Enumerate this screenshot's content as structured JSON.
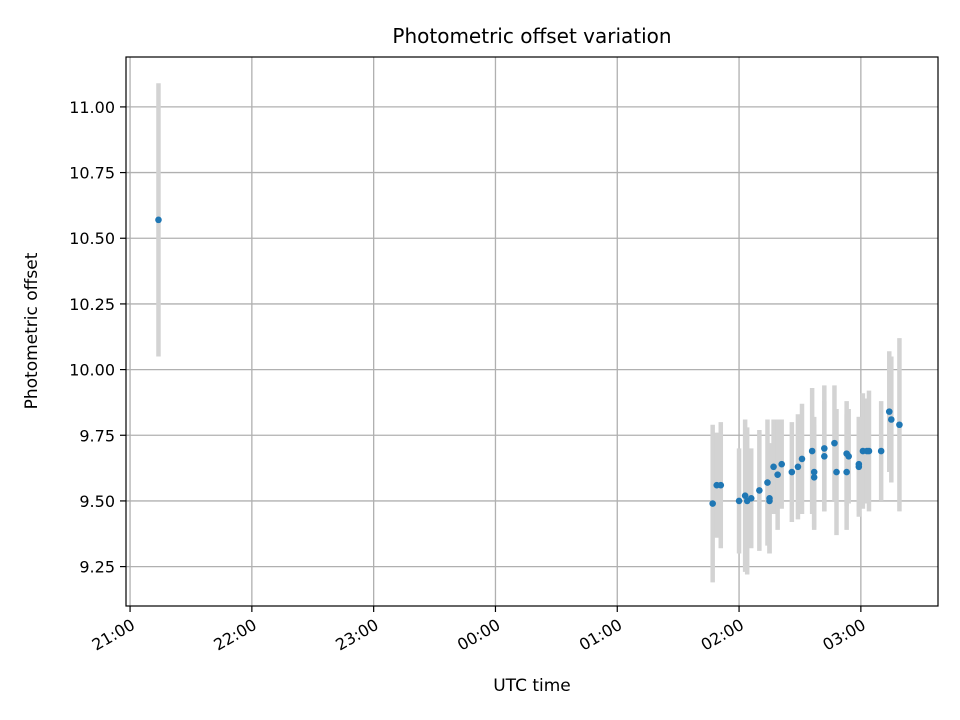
{
  "chart_data": {
    "type": "scatter",
    "title": "Photometric offset variation",
    "xlabel": "UTC time",
    "ylabel": "Photometric offset",
    "x_unit": "UTC time (HH:MM)",
    "xlim": [
      "20:58",
      "03:38"
    ],
    "ylim": [
      9.1,
      11.19
    ],
    "xticks": [
      "21:00",
      "22:00",
      "23:00",
      "00:00",
      "01:00",
      "02:00",
      "03:00"
    ],
    "yticks": [
      "9.25",
      "9.50",
      "9.75",
      "10.00",
      "10.25",
      "10.50",
      "10.75",
      "11.00"
    ],
    "grid": true,
    "colors": {
      "point": "#1f77b4",
      "errorbar": "#d3d3d3",
      "grid": "#b0b0b0"
    },
    "series": [
      {
        "points": [
          {
            "t": "21:14",
            "y": 10.57,
            "err": 0.52
          },
          {
            "t": "01:47",
            "y": 9.49,
            "err": 0.3
          },
          {
            "t": "01:49",
            "y": 9.56,
            "err": 0.2
          },
          {
            "t": "01:51",
            "y": 9.56,
            "err": 0.24
          },
          {
            "t": "02:00",
            "y": 9.5,
            "err": 0.2
          },
          {
            "t": "02:03",
            "y": 9.52,
            "err": 0.29
          },
          {
            "t": "02:04",
            "y": 9.5,
            "err": 0.28
          },
          {
            "t": "02:06",
            "y": 9.51,
            "err": 0.19
          },
          {
            "t": "02:10",
            "y": 9.54,
            "err": 0.23
          },
          {
            "t": "02:14",
            "y": 9.57,
            "err": 0.24
          },
          {
            "t": "02:15",
            "y": 9.5,
            "err": 0.2
          },
          {
            "t": "02:15",
            "y": 9.51,
            "err": 0.21
          },
          {
            "t": "02:17",
            "y": 9.63,
            "err": 0.18
          },
          {
            "t": "02:19",
            "y": 9.6,
            "err": 0.21
          },
          {
            "t": "02:21",
            "y": 9.64,
            "err": 0.17
          },
          {
            "t": "02:26",
            "y": 9.61,
            "err": 0.19
          },
          {
            "t": "02:29",
            "y": 9.63,
            "err": 0.2
          },
          {
            "t": "02:31",
            "y": 9.66,
            "err": 0.21
          },
          {
            "t": "02:36",
            "y": 9.69,
            "err": 0.24
          },
          {
            "t": "02:37",
            "y": 9.61,
            "err": 0.21
          },
          {
            "t": "02:37",
            "y": 9.59,
            "err": 0.2
          },
          {
            "t": "02:42",
            "y": 9.7,
            "err": 0.24
          },
          {
            "t": "02:42",
            "y": 9.67,
            "err": 0.21
          },
          {
            "t": "02:47",
            "y": 9.72,
            "err": 0.22
          },
          {
            "t": "02:48",
            "y": 9.61,
            "err": 0.24
          },
          {
            "t": "02:53",
            "y": 9.61,
            "err": 0.22
          },
          {
            "t": "02:53",
            "y": 9.68,
            "err": 0.2
          },
          {
            "t": "02:54",
            "y": 9.67,
            "err": 0.18
          },
          {
            "t": "02:59",
            "y": 9.64,
            "err": 0.18
          },
          {
            "t": "02:59",
            "y": 9.63,
            "err": 0.19
          },
          {
            "t": "03:01",
            "y": 9.69,
            "err": 0.22
          },
          {
            "t": "03:03",
            "y": 9.69,
            "err": 0.2
          },
          {
            "t": "03:04",
            "y": 9.69,
            "err": 0.23
          },
          {
            "t": "03:10",
            "y": 9.69,
            "err": 0.19
          },
          {
            "t": "03:14",
            "y": 9.84,
            "err": 0.23
          },
          {
            "t": "03:15",
            "y": 9.81,
            "err": 0.24
          },
          {
            "t": "03:19",
            "y": 9.79,
            "err": 0.33
          }
        ]
      }
    ]
  }
}
